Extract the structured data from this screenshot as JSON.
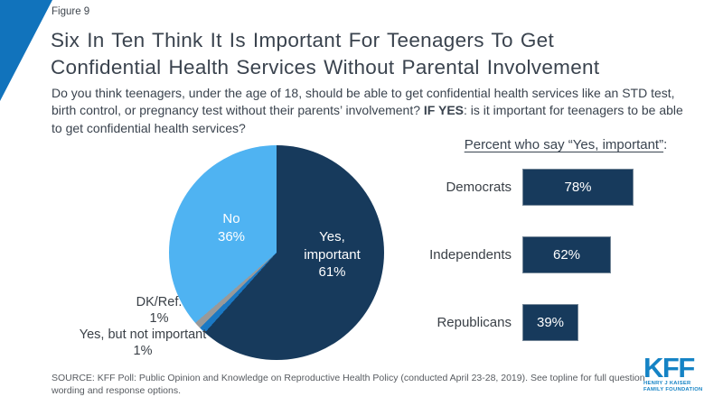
{
  "header": {
    "figure_label": "Figure 9",
    "title_lines": [
      "Six In Ten Think It Is Important For Teenagers To Get",
      "Confidential Health Services Without Parental Involvement"
    ]
  },
  "question": {
    "pre": "Do you think teenagers, under the age of 18, should be able to get confidential health services like an STD test, birth control, or pregnancy test without their parents’ involvement? ",
    "bold": "IF YES",
    "post": ": is it important for teenagers to be able to get confidential health services?"
  },
  "pie": {
    "labels": {
      "yes_important": {
        "lines": [
          "Yes,",
          "important",
          "61%"
        ]
      },
      "no": {
        "lines": [
          "No",
          "36%"
        ]
      },
      "dk_ref": {
        "lines": [
          "DK/Ref.",
          "1%"
        ]
      },
      "yes_not_important": {
        "lines": [
          "Yes, but not important",
          "1%"
        ]
      }
    }
  },
  "bar_panel": {
    "heading": "Percent who say “Yes, important”",
    "heading_colon": ":",
    "rows": [
      {
        "label": "Democrats",
        "value_label": "78%"
      },
      {
        "label": "Independents",
        "value_label": "62%"
      },
      {
        "label": "Republicans",
        "value_label": "39%"
      }
    ]
  },
  "source": "SOURCE: KFF Poll: Public Opinion and Knowledge on Reproductive Health Policy (conducted April 23-28, 2019). See topline for full question wording and response options.",
  "logo": {
    "name": "KFF",
    "sub_lines": [
      "HENRY J KAISER",
      "FAMILY FOUNDATION"
    ]
  },
  "colors": {
    "accent_triangle": "#1173BC",
    "navy": "#173A5C",
    "light_blue": "#4FB3F2",
    "sliver_blue": "#1B79C4",
    "gray": "#999999",
    "logo_blue": "#1583C5",
    "pie_slices": [
      "#173A5C",
      "#1B79C4",
      "#999999",
      "#4FB3F2"
    ]
  },
  "chart_data": [
    {
      "type": "pie",
      "title": "",
      "categories": [
        "Yes, important",
        "Yes, but not important",
        "DK/Ref.",
        "No"
      ],
      "values": [
        61,
        1,
        1,
        36
      ],
      "value_labels": [
        "61%",
        "1%",
        "1%",
        "36%"
      ],
      "start_angle_deg": 0,
      "direction": "clockwise",
      "labels_inside": [
        "Yes, important 61%",
        "No 36%"
      ],
      "labels_outside": [
        "Yes, but not important 1%",
        "DK/Ref. 1%"
      ],
      "legend": "off"
    },
    {
      "type": "bar",
      "orientation": "horizontal",
      "title": "Percent who say “Yes, important”:",
      "categories": [
        "Democrats",
        "Independents",
        "Republicans"
      ],
      "values": [
        78,
        62,
        39
      ],
      "value_labels": [
        "78%",
        "62%",
        "39%"
      ],
      "xlim": [
        0,
        100
      ],
      "grid": "off",
      "legend": "off",
      "data_labels": "inside-center"
    }
  ]
}
